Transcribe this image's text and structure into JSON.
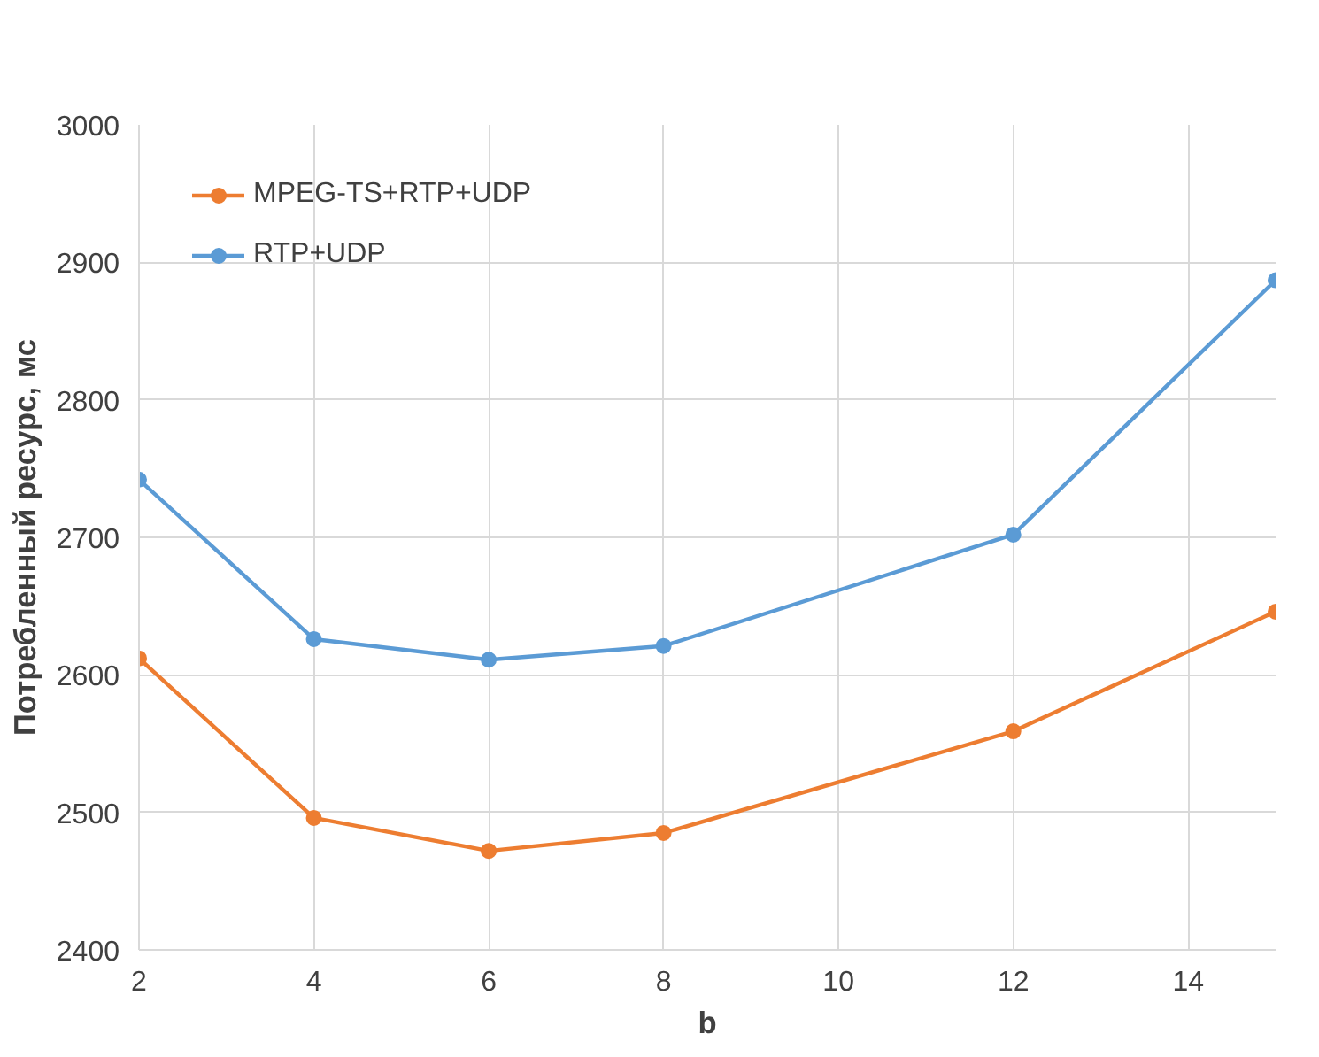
{
  "chart_data": {
    "type": "line",
    "xlabel": "b",
    "ylabel": "Потребленный ресурс, мс",
    "x": [
      2,
      4,
      6,
      8,
      12,
      15
    ],
    "series": [
      {
        "name": "MPEG-TS+RTP+UDP",
        "color": "#ed7d31",
        "values": [
          2612,
          2496,
          2472,
          2485,
          2559,
          2646
        ]
      },
      {
        "name": "RTP+UDP",
        "color": "#5b9bd5",
        "values": [
          2742,
          2626,
          2611,
          2621,
          2702,
          2887
        ]
      }
    ],
    "xlim": [
      2,
      15
    ],
    "xticks": [
      2,
      4,
      6,
      8,
      10,
      12,
      14
    ],
    "ylim": [
      2400,
      3000
    ],
    "yticks": [
      2400,
      2500,
      2600,
      2700,
      2800,
      2900,
      3000
    ],
    "grid": true,
    "legend": "top left",
    "marker": "circle",
    "line_style": "solid"
  }
}
